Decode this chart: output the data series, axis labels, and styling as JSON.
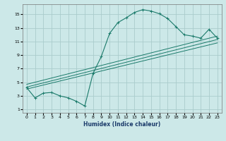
{
  "title": "",
  "xlabel": "Humidex (Indice chaleur)",
  "ylabel": "",
  "bg_color": "#cce8e8",
  "grid_color": "#aacccc",
  "line_color": "#1a7a6a",
  "x_ticks": [
    0,
    1,
    2,
    3,
    4,
    5,
    6,
    7,
    8,
    9,
    10,
    11,
    12,
    13,
    14,
    15,
    16,
    17,
    18,
    19,
    20,
    21,
    22,
    23
  ],
  "y_ticks": [
    1,
    3,
    5,
    7,
    9,
    11,
    13,
    15
  ],
  "ylim": [
    0.5,
    16.5
  ],
  "xlim": [
    -0.5,
    23.5
  ],
  "wavy_x": [
    0,
    1,
    2,
    3,
    4,
    5,
    6,
    7,
    8,
    9,
    10,
    11,
    12,
    13,
    14,
    15,
    16,
    17,
    18,
    19,
    20,
    21,
    22,
    23
  ],
  "wavy_y": [
    4.2,
    2.7,
    3.4,
    3.5,
    3.0,
    2.7,
    2.2,
    1.5,
    6.3,
    8.8,
    12.2,
    13.8,
    14.5,
    15.3,
    15.7,
    15.5,
    15.1,
    14.4,
    13.2,
    12.0,
    11.8,
    11.5,
    12.8,
    11.5
  ],
  "line1_x": [
    0,
    23
  ],
  "line1_y": [
    4.0,
    10.8
  ],
  "line2_x": [
    0,
    23
  ],
  "line2_y": [
    4.3,
    11.3
  ],
  "line3_x": [
    0,
    23
  ],
  "line3_y": [
    4.7,
    11.8
  ]
}
